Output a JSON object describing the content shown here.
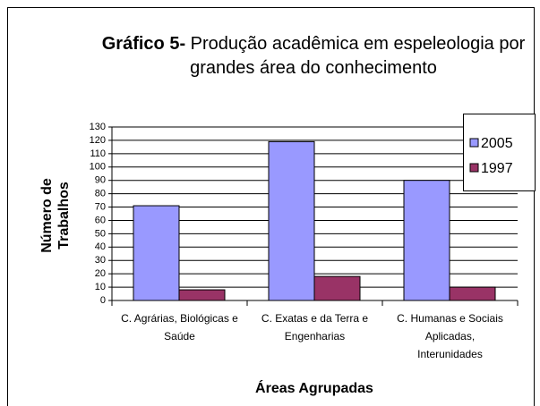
{
  "chart_data": {
    "type": "bar",
    "title_bold": "Gráfico 5-",
    "title": "Produção acadêmica em espeleologia por grandes área do conhecimento",
    "ylabel": "Número de Trabalhos",
    "xlabel": "Áreas Agrupadas",
    "categories": [
      "C. Agrárias, Biológicas e Saúde",
      "C. Exatas e da Terra e Engenharias",
      "C. Humanas e Sociais Aplicadas, Interunidades"
    ],
    "series": [
      {
        "name": "2005",
        "color": "#9999ff",
        "values": [
          71,
          119,
          90
        ]
      },
      {
        "name": "1997",
        "color": "#993366",
        "values": [
          8,
          18,
          10
        ]
      }
    ],
    "ylim": [
      0,
      130
    ],
    "yticks": [
      0,
      10,
      20,
      30,
      40,
      50,
      60,
      70,
      80,
      90,
      100,
      110,
      120,
      130
    ],
    "grid": true,
    "legend": "right"
  }
}
